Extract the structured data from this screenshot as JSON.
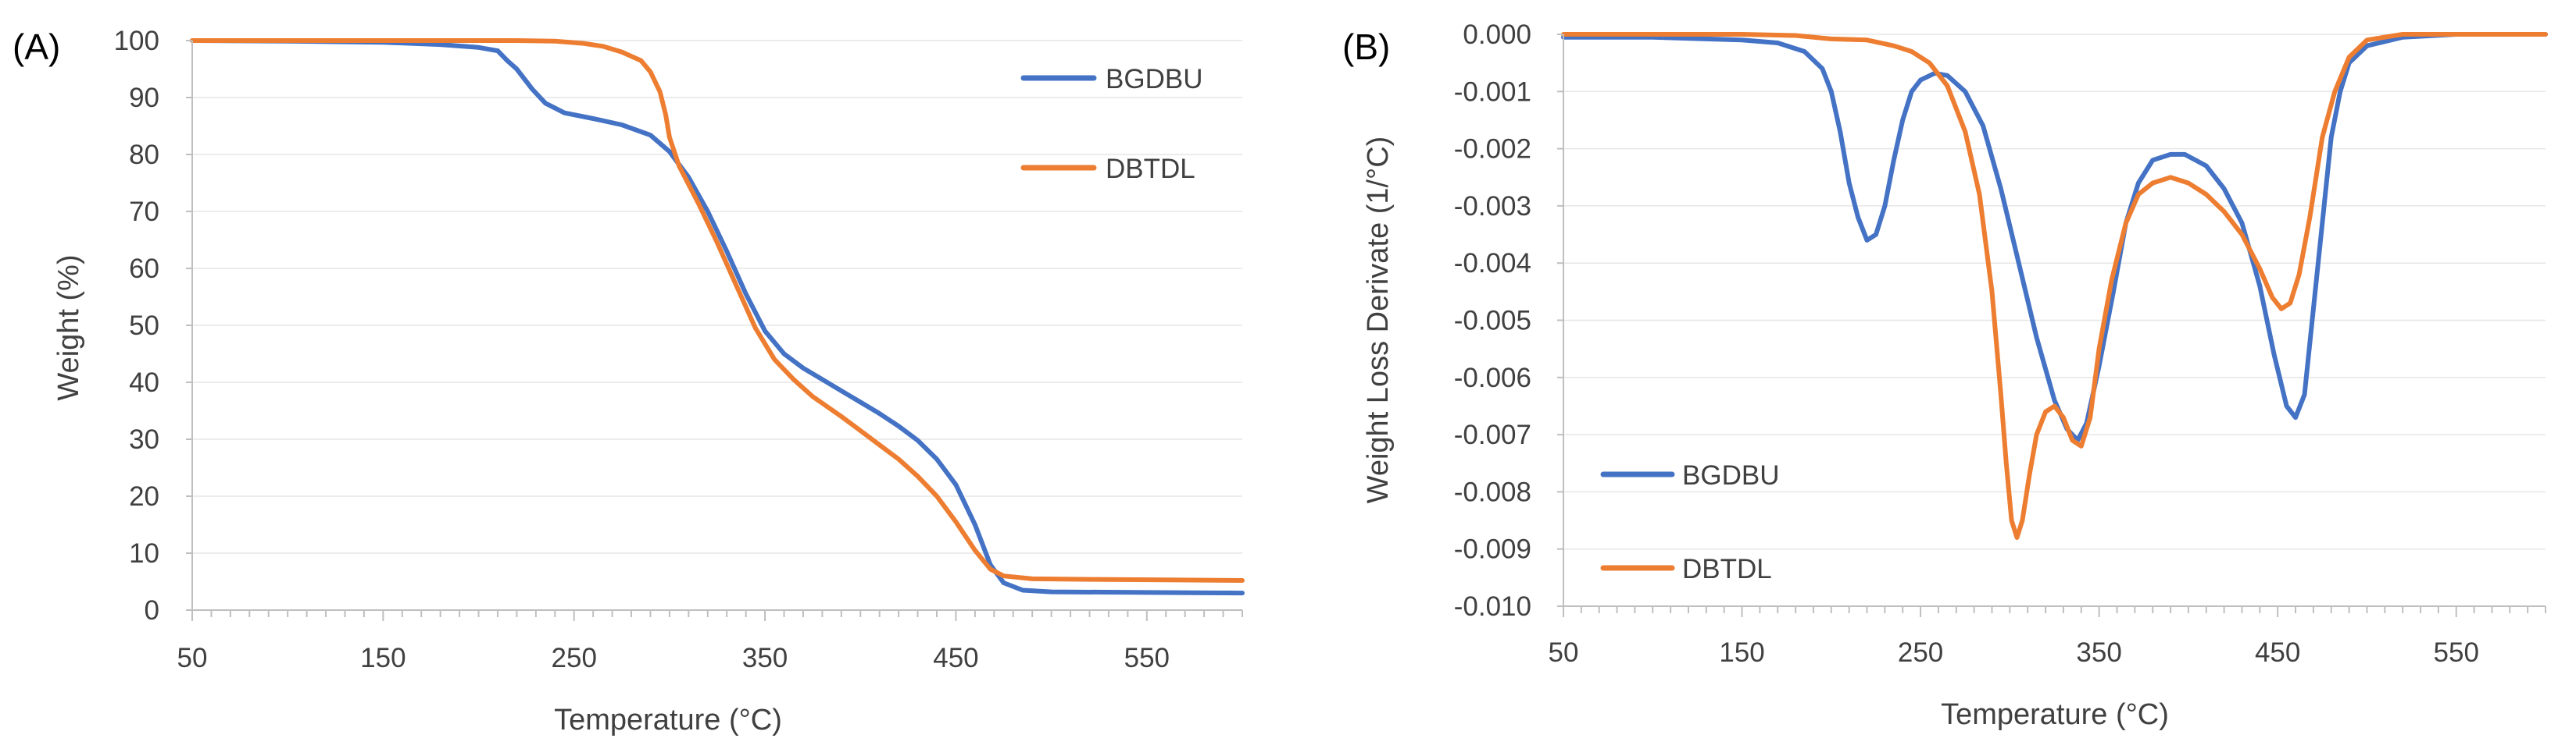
{
  "chart_data": [
    {
      "panel_label": "(A)",
      "type": "line",
      "xlabel": "Temperature (°C)",
      "ylabel": "Weight (%)",
      "xlim": [
        50,
        600
      ],
      "ylim": [
        0,
        100
      ],
      "xticks": [
        "50",
        "150",
        "250",
        "350",
        "450",
        "550"
      ],
      "yticks": [
        "0",
        "10",
        "20",
        "30",
        "40",
        "50",
        "60",
        "70",
        "80",
        "90",
        "100"
      ],
      "legend_position": "top-right",
      "series": [
        {
          "name": "BGDBU",
          "color": "#4472C4",
          "points": [
            [
              50,
              100
            ],
            [
              100,
              99.9
            ],
            [
              150,
              99.7
            ],
            [
              180,
              99.3
            ],
            [
              200,
              98.8
            ],
            [
              210,
              98.2
            ],
            [
              215,
              96.5
            ],
            [
              220,
              95
            ],
            [
              228,
              91.5
            ],
            [
              235,
              89
            ],
            [
              245,
              87.3
            ],
            [
              260,
              86.3
            ],
            [
              275,
              85.2
            ],
            [
              290,
              83.4
            ],
            [
              300,
              80.5
            ],
            [
              310,
              76
            ],
            [
              320,
              70
            ],
            [
              330,
              63
            ],
            [
              340,
              55.5
            ],
            [
              350,
              49
            ],
            [
              360,
              45
            ],
            [
              370,
              42.5
            ],
            [
              380,
              40.5
            ],
            [
              390,
              38.5
            ],
            [
              400,
              36.5
            ],
            [
              410,
              34.5
            ],
            [
              420,
              32.3
            ],
            [
              430,
              29.8
            ],
            [
              440,
              26.5
            ],
            [
              450,
              22
            ],
            [
              460,
              15
            ],
            [
              468,
              8
            ],
            [
              475,
              4.8
            ],
            [
              485,
              3.5
            ],
            [
              500,
              3.2
            ],
            [
              550,
              3.1
            ],
            [
              600,
              3
            ]
          ]
        },
        {
          "name": "DBTDL",
          "color": "#ED7D31",
          "points": [
            [
              50,
              100
            ],
            [
              150,
              100
            ],
            [
              220,
              100
            ],
            [
              240,
              99.9
            ],
            [
              255,
              99.5
            ],
            [
              265,
              99
            ],
            [
              275,
              98
            ],
            [
              285,
              96.5
            ],
            [
              290,
              94.5
            ],
            [
              295,
              91
            ],
            [
              298,
              87
            ],
            [
              300,
              83
            ],
            [
              305,
              78
            ],
            [
              315,
              71.5
            ],
            [
              325,
              64.5
            ],
            [
              335,
              57
            ],
            [
              345,
              49.5
            ],
            [
              355,
              44
            ],
            [
              365,
              40.5
            ],
            [
              375,
              37.5
            ],
            [
              390,
              34
            ],
            [
              400,
              31.5
            ],
            [
              410,
              29
            ],
            [
              420,
              26.5
            ],
            [
              430,
              23.5
            ],
            [
              440,
              20
            ],
            [
              450,
              15.5
            ],
            [
              460,
              10.5
            ],
            [
              468,
              7.2
            ],
            [
              475,
              6
            ],
            [
              490,
              5.5
            ],
            [
              520,
              5.4
            ],
            [
              560,
              5.3
            ],
            [
              600,
              5.2
            ]
          ]
        }
      ]
    },
    {
      "panel_label": "(B)",
      "type": "line",
      "xlabel": "Temperature (°C)",
      "ylabel": "Weight Loss Derivate (1/°C)",
      "xlim": [
        50,
        600
      ],
      "ylim": [
        -0.01,
        0.0
      ],
      "xticks": [
        "50",
        "150",
        "250",
        "350",
        "450",
        "550"
      ],
      "yticks": [
        "0.000",
        "-0.001",
        "-0.002",
        "-0.003",
        "-0.004",
        "-0.005",
        "-0.006",
        "-0.007",
        "-0.008",
        "-0.009",
        "-0.010"
      ],
      "legend_position": "bottom-left",
      "series": [
        {
          "name": "BGDBU",
          "color": "#4472C4",
          "points": [
            [
              50,
              -5e-05
            ],
            [
              100,
              -5e-05
            ],
            [
              150,
              -0.0001
            ],
            [
              170,
              -0.00015
            ],
            [
              185,
              -0.0003
            ],
            [
              195,
              -0.0006
            ],
            [
              200,
              -0.001
            ],
            [
              205,
              -0.0017
            ],
            [
              210,
              -0.0026
            ],
            [
              215,
              -0.0032
            ],
            [
              220,
              -0.0036
            ],
            [
              225,
              -0.0035
            ],
            [
              230,
              -0.003
            ],
            [
              235,
              -0.0022
            ],
            [
              240,
              -0.0015
            ],
            [
              245,
              -0.001
            ],
            [
              250,
              -0.0008
            ],
            [
              258,
              -0.00068
            ],
            [
              265,
              -0.00072
            ],
            [
              275,
              -0.001
            ],
            [
              285,
              -0.0016
            ],
            [
              295,
              -0.0027
            ],
            [
              305,
              -0.004
            ],
            [
              315,
              -0.0053
            ],
            [
              325,
              -0.0064
            ],
            [
              332,
              -0.0069
            ],
            [
              338,
              -0.0071
            ],
            [
              343,
              -0.0068
            ],
            [
              350,
              -0.0058
            ],
            [
              358,
              -0.0045
            ],
            [
              365,
              -0.0033
            ],
            [
              372,
              -0.0026
            ],
            [
              380,
              -0.0022
            ],
            [
              390,
              -0.0021
            ],
            [
              398,
              -0.0021
            ],
            [
              410,
              -0.0023
            ],
            [
              420,
              -0.0027
            ],
            [
              430,
              -0.0033
            ],
            [
              440,
              -0.0044
            ],
            [
              448,
              -0.0056
            ],
            [
              455,
              -0.0065
            ],
            [
              460,
              -0.0067
            ],
            [
              465,
              -0.0063
            ],
            [
              470,
              -0.0048
            ],
            [
              475,
              -0.0033
            ],
            [
              480,
              -0.0018
            ],
            [
              485,
              -0.001
            ],
            [
              490,
              -0.0005
            ],
            [
              500,
              -0.0002
            ],
            [
              520,
              -5e-05
            ],
            [
              550,
              0
            ],
            [
              600,
              0
            ]
          ]
        },
        {
          "name": "DBTDL",
          "color": "#ED7D31",
          "points": [
            [
              50,
              0
            ],
            [
              150,
              0
            ],
            [
              180,
              -2e-05
            ],
            [
              200,
              -8e-05
            ],
            [
              220,
              -0.0001
            ],
            [
              235,
              -0.0002
            ],
            [
              245,
              -0.0003
            ],
            [
              255,
              -0.0005
            ],
            [
              265,
              -0.0009
            ],
            [
              275,
              -0.0017
            ],
            [
              283,
              -0.0028
            ],
            [
              290,
              -0.0045
            ],
            [
              295,
              -0.0063
            ],
            [
              298,
              -0.0075
            ],
            [
              301,
              -0.0085
            ],
            [
              304,
              -0.0088
            ],
            [
              307,
              -0.0085
            ],
            [
              311,
              -0.0077
            ],
            [
              315,
              -0.007
            ],
            [
              320,
              -0.0066
            ],
            [
              325,
              -0.0065
            ],
            [
              330,
              -0.0067
            ],
            [
              335,
              -0.0071
            ],
            [
              340,
              -0.0072
            ],
            [
              345,
              -0.0067
            ],
            [
              350,
              -0.0055
            ],
            [
              357,
              -0.0043
            ],
            [
              365,
              -0.0033
            ],
            [
              372,
              -0.0028
            ],
            [
              380,
              -0.0026
            ],
            [
              390,
              -0.0025
            ],
            [
              400,
              -0.0026
            ],
            [
              410,
              -0.0028
            ],
            [
              420,
              -0.0031
            ],
            [
              430,
              -0.0035
            ],
            [
              440,
              -0.0041
            ],
            [
              447,
              -0.0046
            ],
            [
              452,
              -0.0048
            ],
            [
              457,
              -0.0047
            ],
            [
              462,
              -0.0042
            ],
            [
              468,
              -0.0032
            ],
            [
              475,
              -0.0018
            ],
            [
              482,
              -0.001
            ],
            [
              490,
              -0.0004
            ],
            [
              500,
              -0.0001
            ],
            [
              520,
              0
            ],
            [
              600,
              0
            ]
          ]
        }
      ]
    }
  ]
}
